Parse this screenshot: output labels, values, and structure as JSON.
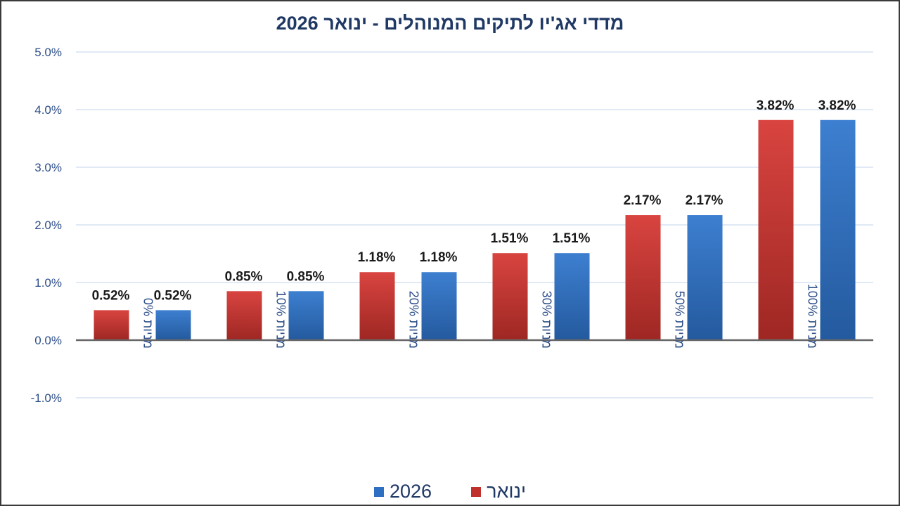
{
  "chart_data": {
    "type": "bar",
    "title": "מדדי אג'יו לתיקים המנוהלים  -  ינואר 2026",
    "xlabel": "",
    "ylabel": "",
    "ylim": [
      -1.0,
      5.0
    ],
    "yticks": [
      "5.0%",
      "4.0%",
      "3.0%",
      "2.0%",
      "1.0%",
      "0.0%",
      "-1.0%"
    ],
    "ytick_values": [
      5.0,
      4.0,
      3.0,
      2.0,
      1.0,
      0.0,
      -1.0
    ],
    "categories": [
      "מניות 0%",
      "מניות 10%",
      "מניות 20%",
      "מניות 30%",
      "מניות 50%",
      "מניות 100%"
    ],
    "series": [
      {
        "name": "ינואר",
        "color": "#c0302c",
        "values": [
          0.52,
          0.85,
          1.18,
          1.51,
          2.17,
          3.82
        ],
        "labels": [
          "0.52%",
          "0.85%",
          "1.18%",
          "1.51%",
          "2.17%",
          "3.82%"
        ]
      },
      {
        "name": "2026",
        "color": "#2e6fc2",
        "values": [
          0.52,
          0.85,
          1.18,
          1.51,
          2.17,
          3.82
        ],
        "labels": [
          "0.52%",
          "0.85%",
          "1.18%",
          "1.51%",
          "2.17%",
          "3.82%"
        ]
      }
    ],
    "grid": true,
    "legend": "bottom"
  }
}
